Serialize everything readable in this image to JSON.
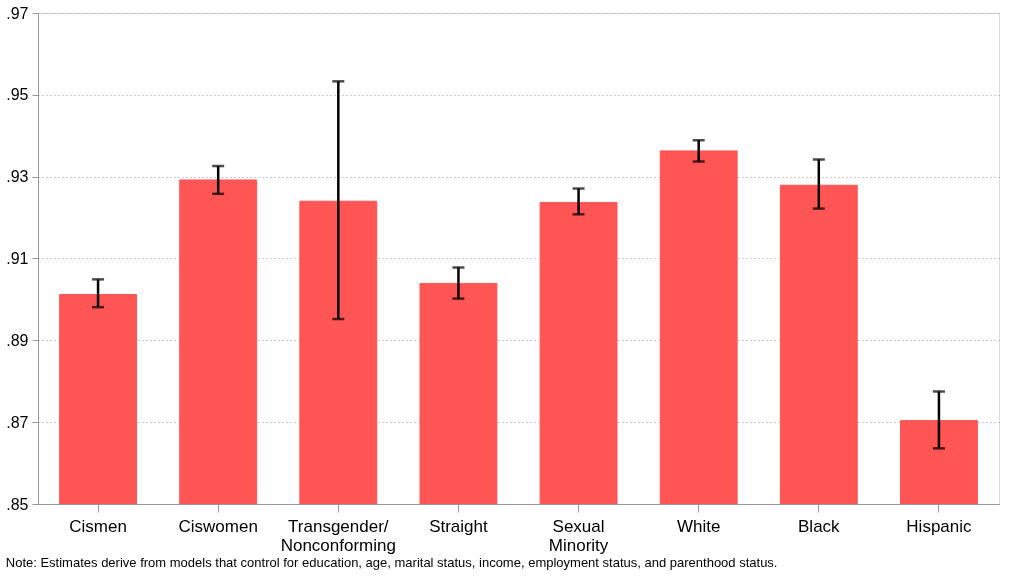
{
  "chart_data": {
    "type": "bar",
    "categories": [
      "Cismen",
      "Ciswomen",
      "Transgender/\nNonconforming",
      "Straight",
      "Sexual\nMinority",
      "White",
      "Black",
      "Hispanic"
    ],
    "values": [
      0.9012,
      0.9292,
      0.924,
      0.9039,
      0.9237,
      0.9363,
      0.9279,
      0.8704
    ],
    "errors": [
      [
        0.8981,
        0.9049
      ],
      [
        0.9258,
        0.9326
      ],
      [
        0.8952,
        0.9533
      ],
      [
        0.9002,
        0.9078
      ],
      [
        0.9208,
        0.9271
      ],
      [
        0.9337,
        0.9389
      ],
      [
        0.9222,
        0.9342
      ],
      [
        0.8636,
        0.8775
      ]
    ],
    "color": "#ff5555",
    "ylim": [
      0.85,
      0.97
    ],
    "yticks": [
      {
        "value": 0.85,
        "label": ".85"
      },
      {
        "value": 0.87,
        "label": ".87"
      },
      {
        "value": 0.89,
        "label": ".89"
      },
      {
        "value": 0.91,
        "label": ".91"
      },
      {
        "value": 0.93,
        "label": ".93"
      },
      {
        "value": 0.95,
        "label": ".95"
      },
      {
        "value": 0.97,
        "label": ".97"
      }
    ],
    "grid": "y",
    "annotations": [
      "Note: Estimates derive from models that control for education, age, marital status, income, employment status, and parenthood status."
    ]
  }
}
